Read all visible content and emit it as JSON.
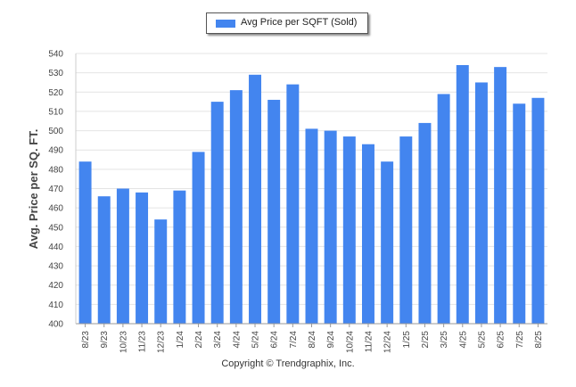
{
  "chart_data": {
    "type": "bar",
    "legend_position": "top-center",
    "grid": true,
    "xlabel": "",
    "ylabel": "Avg. Price per SQ. FT.",
    "ylim": [
      400,
      540
    ],
    "yticks": [
      400,
      410,
      420,
      430,
      440,
      450,
      460,
      470,
      480,
      490,
      500,
      510,
      520,
      530,
      540
    ],
    "categories": [
      "8/23",
      "9/23",
      "10/23",
      "11/23",
      "12/23",
      "1/24",
      "2/24",
      "3/24",
      "4/24",
      "5/24",
      "6/24",
      "7/24",
      "8/24",
      "9/24",
      "10/24",
      "11/24",
      "12/24",
      "1/25",
      "2/25",
      "3/25",
      "4/25",
      "5/25",
      "6/25",
      "7/25",
      "8/25"
    ],
    "series": [
      {
        "name": "Avg Price per SQFT (Sold)",
        "color": "#4385ef",
        "values": [
          484,
          466,
          470,
          468,
          454,
          469,
          489,
          515,
          521,
          529,
          516,
          524,
          501,
          500,
          497,
          493,
          484,
          497,
          504,
          519,
          534,
          525,
          533,
          514,
          517
        ]
      }
    ]
  },
  "footer": {
    "copyright": "Copyright © Trendgraphix, Inc."
  }
}
